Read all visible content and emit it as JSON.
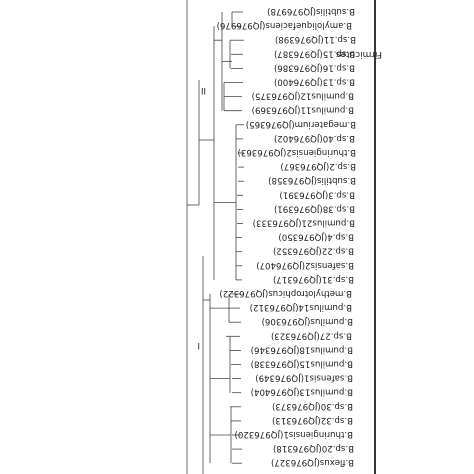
{
  "tree": {
    "leaves": [
      {
        "label": "B.subtilis(JQ976978)"
      },
      {
        "label": "B.amyloliquefaciens(JQ976976)"
      },
      {
        "label": "B.sp.11(JQ976398)"
      },
      {
        "label": "B.sp.15(JQ976387)"
      },
      {
        "label": "B.sp.16(JQ976386)"
      },
      {
        "label": "B.sp.13(JQ976400)"
      },
      {
        "label": "B.pumilus12(JQ976375)"
      },
      {
        "label": "B.pumilus11(JQ976369)"
      },
      {
        "label": "B.megaterium(JQ976365)"
      },
      {
        "label": "B.sp.40(JQ976402)"
      },
      {
        "label": "B.thuringiensis2(JQ976363)"
      },
      {
        "label": "B.sp.2(JQ976367)"
      },
      {
        "label": "B.subtilis(JQ976358)"
      },
      {
        "label": "B.sp.3(JQ976391)"
      },
      {
        "label": "B.sp.38(JQ976391)"
      },
      {
        "label": "B.pumilus21(JQ976333)"
      },
      {
        "label": "B.sp.4(JQ976350)"
      },
      {
        "label": "B.sp.22(JQ976352)"
      },
      {
        "label": "B.safensis2(JQ976407)"
      },
      {
        "label": "B.sp.31(JQ976317)"
      },
      {
        "label": "B.methylotrophicus(JQ976322)"
      },
      {
        "label": "B.pumilus14(JQ976312)"
      },
      {
        "label": "B.pumilus(JQ976306)"
      },
      {
        "label": "B.sp.27(JQ976323)"
      },
      {
        "label": "B.pumilus18(JQ976346)"
      },
      {
        "label": "B.pumilus15(JQ976338)"
      },
      {
        "label": "B.safensis1(JQ976349)"
      },
      {
        "label": "B.pumilus13(JQ976404)"
      },
      {
        "label": "B.sp.30(JQ976373)"
      },
      {
        "label": "B.sp.32(JQ976313)"
      },
      {
        "label": "B.thuringiensis1(JQ976320)"
      },
      {
        "label": "B.sp.20(JQ976318)"
      },
      {
        "label": "B.flexus(JQ976327)"
      }
    ],
    "node_labels": [
      "II",
      "I"
    ],
    "clade": {
      "label": "Firmicutes"
    }
  }
}
